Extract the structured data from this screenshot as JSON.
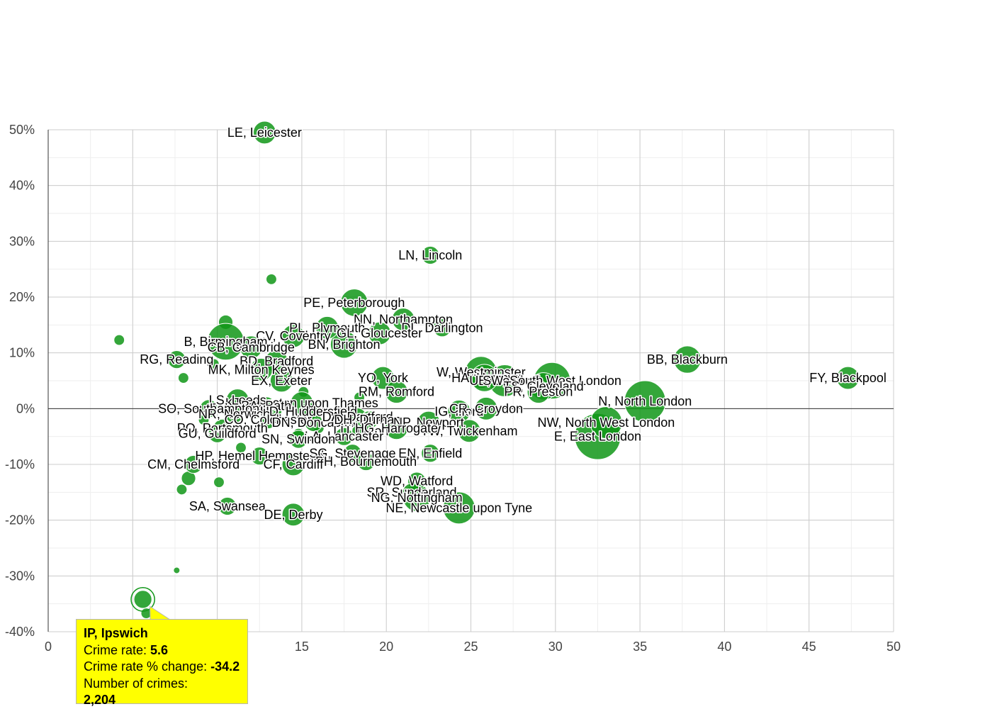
{
  "chart_data": {
    "type": "scatter",
    "subtype": "bubble",
    "title": "",
    "xlabel": "",
    "ylabel": "",
    "xlim": [
      0,
      50
    ],
    "ylim": [
      -40,
      50
    ],
    "x_ticks": [
      0,
      5,
      10,
      15,
      20,
      25,
      30,
      35,
      40,
      45,
      50
    ],
    "y_ticks": [
      50,
      40,
      30,
      20,
      10,
      0,
      -10,
      -20,
      -30,
      -40
    ],
    "x_tick_labels": [
      "0",
      "5",
      "10",
      "15",
      "20",
      "25",
      "30",
      "35",
      "40",
      "45",
      "50"
    ],
    "y_tick_labels": [
      "50%",
      "40%",
      "30%",
      "20%",
      "10%",
      "0%",
      "-10%",
      "-20%",
      "-30%",
      "-40%"
    ],
    "grid": true,
    "colors": {
      "bubble": "#109618",
      "bubble_stroke": "#ffffff",
      "tooltip_bg": "#ffff00"
    },
    "points": [
      {
        "label": "LE, Leicester",
        "x": 12.8,
        "y": 49.5,
        "size": 3
      },
      {
        "label": "LN, Lincoln",
        "x": 22.6,
        "y": 27.5,
        "size": 2
      },
      {
        "label": "PE, Peterborough",
        "x": 18.1,
        "y": 19.0,
        "size": 4
      },
      {
        "label": "NN, Northampton",
        "x": 21.0,
        "y": 16.0,
        "size": 3
      },
      {
        "label": "DL, Darlington",
        "x": 23.3,
        "y": 14.5,
        "size": 2
      },
      {
        "label": "PL, Plymouth",
        "x": 16.5,
        "y": 14.5,
        "size": 3
      },
      {
        "label": "GL, Gloucester",
        "x": 19.6,
        "y": 13.5,
        "size": 3
      },
      {
        "label": "CV, Coventry",
        "x": 14.5,
        "y": 13.0,
        "size": 3
      },
      {
        "label": "BN, Brighton",
        "x": 17.5,
        "y": 11.5,
        "size": 4
      },
      {
        "label": "B, Birmingham",
        "x": 10.5,
        "y": 12.0,
        "size": 6
      },
      {
        "label": "CB, Cambridge",
        "x": 12.0,
        "y": 11.0,
        "size": 3
      },
      {
        "label": "RG, Reading",
        "x": 7.6,
        "y": 8.8,
        "size": 2
      },
      {
        "label": "BD, Bradford",
        "x": 13.5,
        "y": 8.5,
        "size": 3
      },
      {
        "label": "MK, Milton Keynes",
        "x": 12.6,
        "y": 7.0,
        "size": 3
      },
      {
        "label": "EX, Exeter",
        "x": 13.8,
        "y": 5.0,
        "size": 3
      },
      {
        "label": "YO, York",
        "x": 19.8,
        "y": 5.5,
        "size": 3
      },
      {
        "label": "RM, Romford",
        "x": 20.6,
        "y": 3.0,
        "size": 3
      },
      {
        "label": "W, Westminster",
        "x": 25.6,
        "y": 6.5,
        "size": 5
      },
      {
        "label": "HA, Harrow",
        "x": 25.8,
        "y": 5.5,
        "size": 4
      },
      {
        "label": "UB, Southall",
        "x": 27.0,
        "y": 5.0,
        "size": 5
      },
      {
        "label": "SW, South West London",
        "x": 29.8,
        "y": 5.0,
        "size": 6
      },
      {
        "label": "TS, Cleveland",
        "x": 29.3,
        "y": 4.0,
        "size": 4
      },
      {
        "label": "PR, Preston",
        "x": 29.0,
        "y": 3.0,
        "size": 3
      },
      {
        "label": "BB, Blackburn",
        "x": 37.8,
        "y": 8.8,
        "size": 4
      },
      {
        "label": "FY, Blackpool",
        "x": 47.3,
        "y": 5.5,
        "size": 3
      },
      {
        "label": "N, North London",
        "x": 35.3,
        "y": 1.3,
        "size": 7
      },
      {
        "label": "NW, North West London",
        "x": 33.0,
        "y": -2.5,
        "size": 5
      },
      {
        "label": "E, East London",
        "x": 32.5,
        "y": -5.0,
        "size": 8
      },
      {
        "label": "IG, Ilford",
        "x": 24.3,
        "y": -0.5,
        "size": 3
      },
      {
        "label": "CR, Croydon",
        "x": 25.9,
        "y": 0.0,
        "size": 3
      },
      {
        "label": "KT, Kingston upon Thames",
        "x": 15.0,
        "y": 1.0,
        "size": 3
      },
      {
        "label": "LS, Leeds",
        "x": 11.2,
        "y": 1.5,
        "size": 3
      },
      {
        "label": "BA, Bath",
        "x": 12.9,
        "y": 0.5,
        "size": 2
      },
      {
        "label": "HD, Huddersfield",
        "x": 15.4,
        "y": -0.5,
        "size": 2
      },
      {
        "label": "SO, Southampton",
        "x": 9.5,
        "y": 0.0,
        "size": 2
      },
      {
        "label": "NR, Norwich",
        "x": 11.0,
        "y": -1.0,
        "size": 2
      },
      {
        "label": "CO, Colchester",
        "x": 13.0,
        "y": -2.0,
        "size": 2
      },
      {
        "label": "DN, Doncaster",
        "x": 15.7,
        "y": -2.5,
        "size": 2
      },
      {
        "label": "DA, Dartford",
        "x": 18.3,
        "y": -1.5,
        "size": 2
      },
      {
        "label": "DH, Durham",
        "x": 19.0,
        "y": -2.0,
        "size": 2
      },
      {
        "label": "NP, Newport",
        "x": 22.5,
        "y": -2.5,
        "size": 3
      },
      {
        "label": "PO, Portsmouth",
        "x": 10.3,
        "y": -3.5,
        "size": 2
      },
      {
        "label": "GU, Guildford",
        "x": 10.0,
        "y": -4.5,
        "size": 2
      },
      {
        "label": "TW, Twickenham",
        "x": 24.9,
        "y": -4.0,
        "size": 3
      },
      {
        "label": "LU, Luton",
        "x": 18.5,
        "y": -4.0,
        "size": 2
      },
      {
        "label": "HG, Harrogate",
        "x": 20.6,
        "y": -3.5,
        "size": 3
      },
      {
        "label": "LA, Lancaster",
        "x": 17.5,
        "y": -5.0,
        "size": 2
      },
      {
        "label": "SN, Swindon",
        "x": 14.8,
        "y": -5.5,
        "size": 2
      },
      {
        "label": "HP, Hemel Hempstead",
        "x": 12.5,
        "y": -8.5,
        "size": 2
      },
      {
        "label": "SG, Stevenage",
        "x": 18.0,
        "y": -8.0,
        "size": 2
      },
      {
        "label": "EN, Enfield",
        "x": 22.6,
        "y": -8.0,
        "size": 2
      },
      {
        "label": "BH, Bournemouth",
        "x": 18.8,
        "y": -9.5,
        "size": 2
      },
      {
        "label": "CF, Cardiff",
        "x": 14.5,
        "y": -10.0,
        "size": 3
      },
      {
        "label": "CM, Chelmsford",
        "x": 8.6,
        "y": -10.0,
        "size": 2
      },
      {
        "label": "WD, Watford",
        "x": 21.8,
        "y": -13.0,
        "size": 2
      },
      {
        "label": "SR, Sunderland",
        "x": 21.5,
        "y": -15.0,
        "size": 2
      },
      {
        "label": "NG, Nottingham",
        "x": 21.8,
        "y": -16.0,
        "size": 4
      },
      {
        "label": "NE, Newcastle upon Tyne",
        "x": 24.3,
        "y": -17.8,
        "size": 5
      },
      {
        "label": "SA, Swansea",
        "x": 10.6,
        "y": -17.5,
        "size": 2
      },
      {
        "label": "DE, Derby",
        "x": 14.5,
        "y": -19.0,
        "size": 3
      },
      {
        "label": "IP, Ipswich",
        "x": 5.6,
        "y": -34.2,
        "size": 2,
        "highlighted": true
      }
    ],
    "unlabeled_points": [
      {
        "x": 4.2,
        "y": 12.3,
        "size": 1
      },
      {
        "x": 13.2,
        "y": 23.2,
        "size": 1
      },
      {
        "x": 10.5,
        "y": 15.5,
        "size": 2
      },
      {
        "x": 8.0,
        "y": 5.5,
        "size": 1
      },
      {
        "x": 9.8,
        "y": 8.0,
        "size": 1
      },
      {
        "x": 7.9,
        "y": -14.5,
        "size": 1
      },
      {
        "x": 8.3,
        "y": -12.5,
        "size": 2
      },
      {
        "x": 10.1,
        "y": -13.2,
        "size": 1
      },
      {
        "x": 7.6,
        "y": -29.0,
        "size": 0.5
      },
      {
        "x": 5.8,
        "y": -36.7,
        "size": 1
      },
      {
        "x": 15.1,
        "y": 3.0,
        "size": 1
      },
      {
        "x": 18.4,
        "y": 2.0,
        "size": 1
      },
      {
        "x": 11.4,
        "y": -7.0,
        "size": 1
      },
      {
        "x": 16.0,
        "y": -3.5,
        "size": 1
      },
      {
        "x": 14.8,
        "y": -4.5,
        "size": 1
      },
      {
        "x": 12.2,
        "y": -1.0,
        "size": 1
      },
      {
        "x": 16.1,
        "y": -9.0,
        "size": 1
      },
      {
        "x": 13.5,
        "y": -0.5,
        "size": 1
      },
      {
        "x": 9.2,
        "y": -2.0,
        "size": 1
      }
    ]
  },
  "tooltip": {
    "title": "IP, Ipswich",
    "rate_label": "Crime rate:",
    "rate_value": "5.6",
    "change_label": "Crime rate % change:",
    "change_value": "-34.2",
    "crimes_label": "Number of crimes:",
    "crimes_value": "2,204"
  }
}
